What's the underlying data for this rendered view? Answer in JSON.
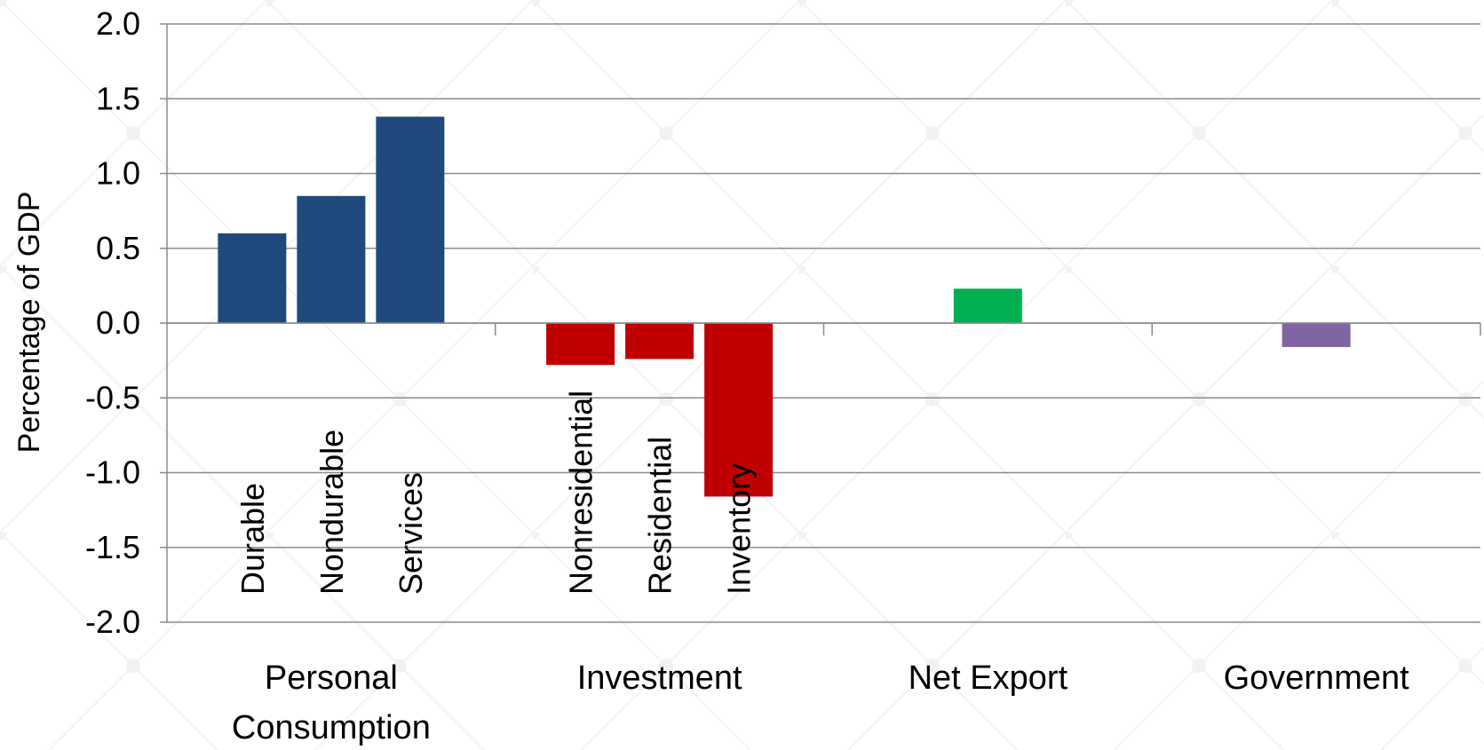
{
  "chart_data": {
    "type": "bar",
    "ylabel": "Percentage of GDP",
    "ylim": [
      -2.0,
      2.0
    ],
    "yticks": [
      "2.0",
      "1.5",
      "1.0",
      "0.5",
      "0.0",
      "-0.5",
      "-1.0",
      "-1.5",
      "-2.0"
    ],
    "grid": true,
    "groups": [
      {
        "label_lines": [
          "Personal",
          "Consumption"
        ],
        "color": "#1F497D",
        "bars": [
          {
            "label": "Durable",
            "value": 0.6
          },
          {
            "label": "Nondurable",
            "value": 0.85
          },
          {
            "label": "Services",
            "value": 1.38
          }
        ]
      },
      {
        "label_lines": [
          "Investment"
        ],
        "color": "#C00000",
        "bars": [
          {
            "label": "Nonresidential",
            "value": -0.28
          },
          {
            "label": "Residential",
            "value": -0.24
          },
          {
            "label": "Inventory",
            "value": -1.16
          }
        ]
      },
      {
        "label_lines": [
          "Net Export"
        ],
        "color": "#00B050",
        "bars": [
          {
            "label": "",
            "value": 0.23
          }
        ]
      },
      {
        "label_lines": [
          "Government"
        ],
        "color": "#8064A2",
        "bars": [
          {
            "label": "",
            "value": -0.16
          }
        ]
      }
    ]
  }
}
